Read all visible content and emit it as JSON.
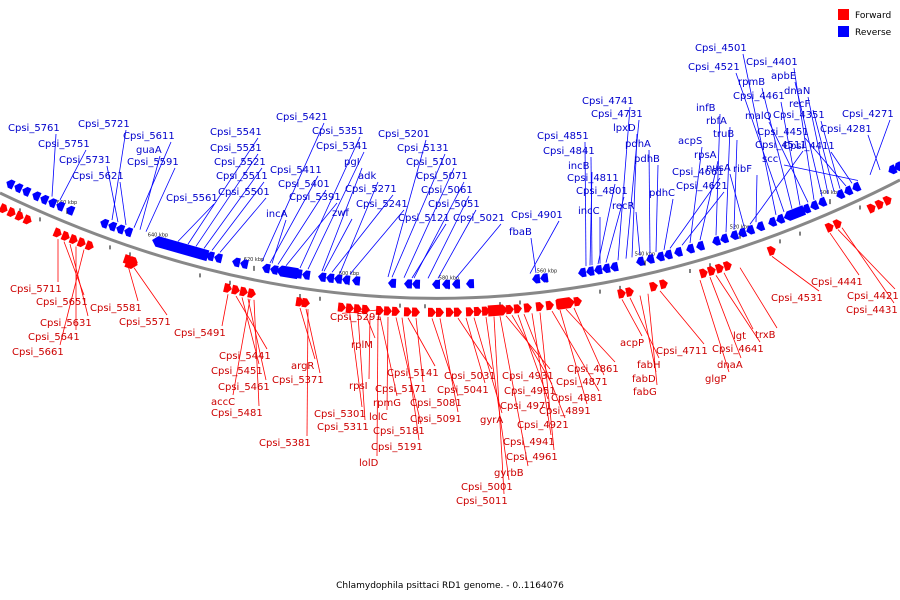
{
  "legend": {
    "forward_label": "Forward",
    "reverse_label": "Reverse",
    "forward_color": "#ff0000",
    "reverse_color": "#0000ff"
  },
  "caption": "Chlamydophila psittaci RD1 genome. - 0..1164076",
  "backbone_color": "#888888",
  "tick_labels": [
    "660 kbp",
    "640 kbp",
    "620 kbp",
    "600 kbp",
    "580 kbp",
    "560 kbp",
    "540 kbp",
    "520 kbp",
    "500 kbp"
  ],
  "reverse_labels": [
    "Cpsi_5761",
    "Cpsi_5751",
    "Cpsi_5721",
    "Cpsi_5731",
    "Cpsi_5621",
    "Cpsi_5611",
    "guaA",
    "Cpsi_5591",
    "Cpsi_5561",
    "Cpsi_5541",
    "Cpsi_5531",
    "Cpsi_5521",
    "Cpsi_5511",
    "Cpsi_5501",
    "Cpsi_5421",
    "Cpsi_5411",
    "Cpsi_5401",
    "Cpsi_5391",
    "incA",
    "Cpsi_5351",
    "Cpsi_5341",
    "pgI",
    "Cpsi_5271",
    "adk",
    "zwf",
    "Cpsi_5241",
    "Cpsi_5201",
    "Cpsi_5131",
    "Cpsi_5101",
    "Cpsi_5071",
    "Cpsi_5061",
    "Cpsi_5051",
    "Cpsi_5121",
    "Cpsi_5021",
    "Cpsi_4901",
    "fbaB",
    "Cpsi_4851",
    "Cpsi_4841",
    "incB",
    "Cpsi_4811",
    "incC",
    "Cpsi_4801",
    "Cpsi_4741",
    "Cpsi_4731",
    "lpxD",
    "recR",
    "pdhA",
    "pdhB",
    "pdhC",
    "Cpsi_4661",
    "Cpsi_4621",
    "acpS",
    "rpsA",
    "infB",
    "rbfA",
    "truB",
    "nusA",
    "Cpsi_4511",
    "ribF",
    "Cpsi_4501",
    "Cpsi_4521",
    "rpmB",
    "Cpsi_4461",
    "malQ",
    "Cpsi_4401",
    "apbE",
    "dnaN",
    "recF",
    "Cpsi_4351",
    "Cpsi_4451",
    "Cpsi_4411",
    "scc",
    "Cpsi_4271",
    "Cpsi_4281"
  ],
  "forward_labels": [
    "Cpsi_5711",
    "Cpsi_5651",
    "Cpsi_5631",
    "Cpsi_5641",
    "Cpsi_5661",
    "Cpsi_5581",
    "Cpsi_5571",
    "Cpsi_5491",
    "Cpsi_5441",
    "Cpsi_5451",
    "Cpsi_5461",
    "accC",
    "Cpsi_5481",
    "argR",
    "Cpsi_5371",
    "Cpsi_5381",
    "Cpsi_5291",
    "Cpsi_5301",
    "Cpsi_5311",
    "rplM",
    "rpsI",
    "rpmG",
    "lolC",
    "Cpsi_5181",
    "Cpsi_5191",
    "lolD",
    "Cpsi_5141",
    "Cpsi_5171",
    "Cpsi_5081",
    "Cpsi_5091",
    "Cpsi_5031",
    "Cpsi_5041",
    "gyrA",
    "Cpsi_5001",
    "Cpsi_5011",
    "gyrbB",
    "Cpsi_4931",
    "Cpsi_4951",
    "Cpsi_4971",
    "Cpsi_4921",
    "Cpsi_4941",
    "Cpsi_4961",
    "Cpsi_4881",
    "Cpsi_4891",
    "Cpsi_4861",
    "Cpsi_4871",
    "acpP",
    "fabH",
    "fabD",
    "fabG",
    "Cpsi_4711",
    "Cpsi_4641",
    "dnaA",
    "glgP",
    "lgt",
    "trxB",
    "Cpsi_4531",
    "Cpsi_4441",
    "Cpsi_4421",
    "Cpsi_4431"
  ]
}
